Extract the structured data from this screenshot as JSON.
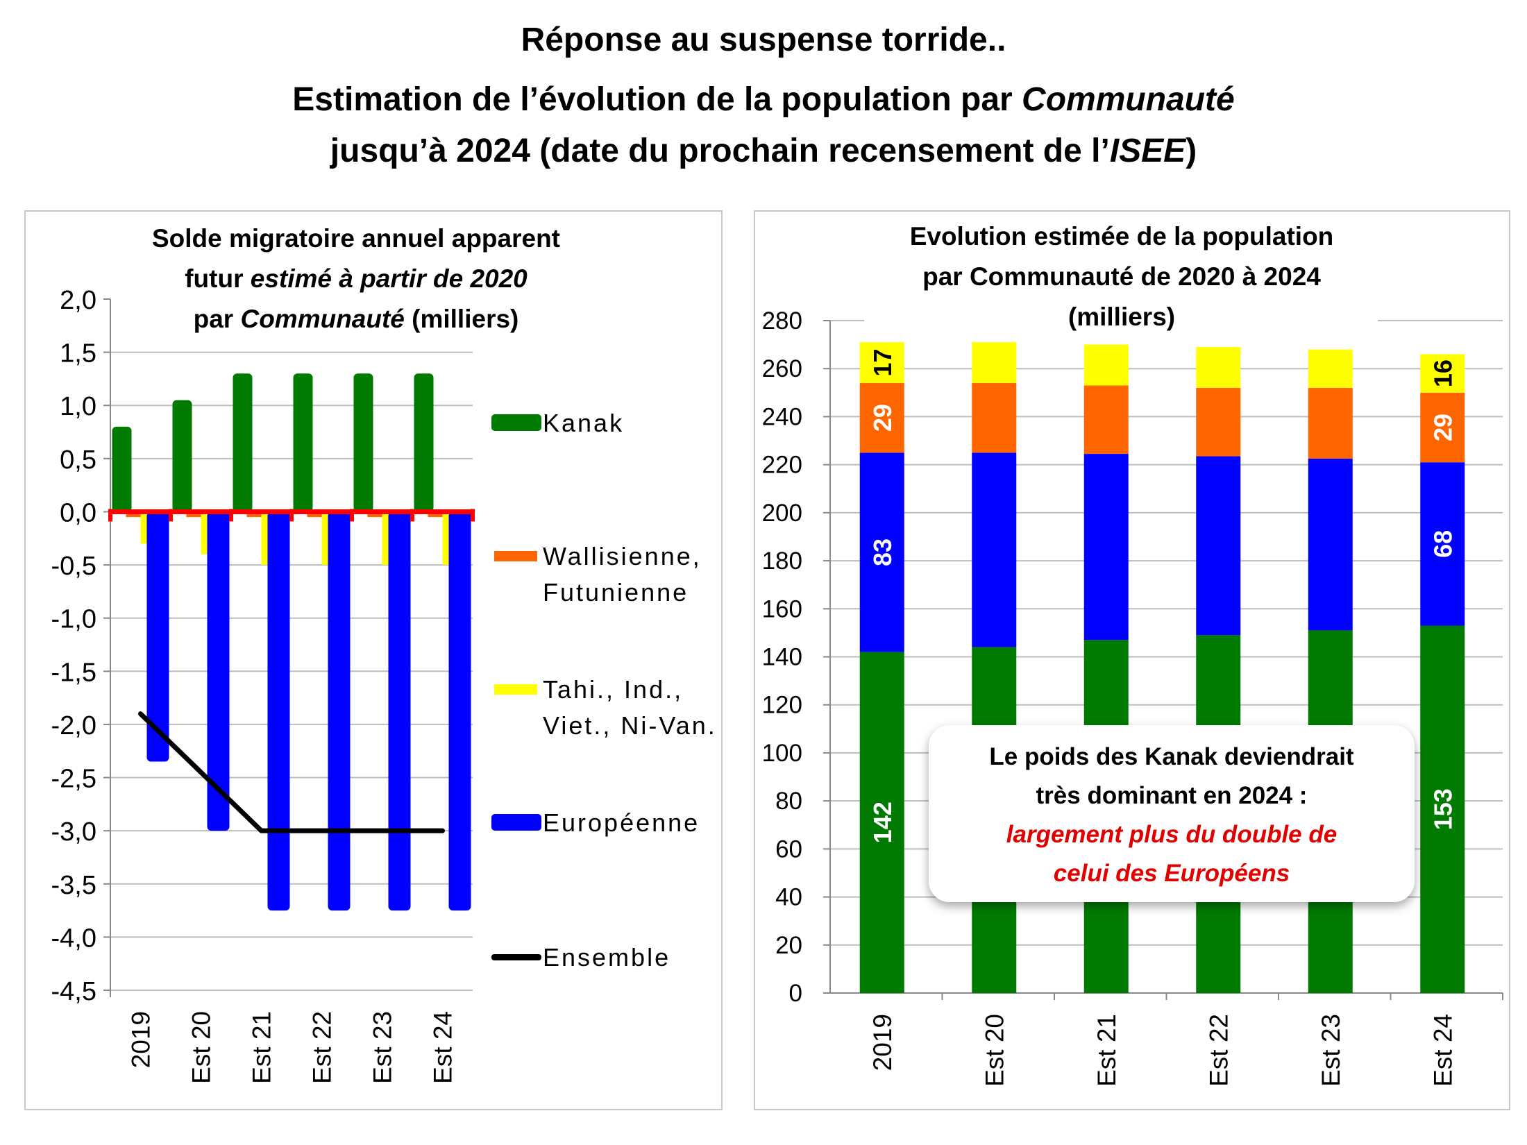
{
  "header": {
    "line1": "Réponse au suspense torride..",
    "line2_prefix": "Estimation de l’évolution de la population par ",
    "line2_italic": "Communauté",
    "line3_prefix": "jusqu’à 2024 (date du prochain recensement de l’",
    "line3_italic": "ISEE",
    "line3_suffix": ")"
  },
  "callout": {
    "line1": "Le poids des Kanak deviendrait",
    "line2": "très dominant en 2024 :",
    "line3": "largement plus du double de",
    "line4": "celui des Européens"
  },
  "colors": {
    "kanak": "#007a00",
    "wallis": "#ff6600",
    "tahi": "#ffff00",
    "europeenne": "#0000ff",
    "ensemble": "#000000",
    "zero_line": "#ff0000"
  },
  "chart_data": [
    {
      "type": "bar",
      "title": "Solde migratoire annuel apparent futur estimé à partir de 2020 par Communauté (milliers)",
      "title_lines": [
        "Solde migratoire annuel apparent",
        "futur |estimé à partir de 2020|",
        "par |Communauté| (milliers)"
      ],
      "categories": [
        "2019",
        "Est 20",
        "Est 21",
        "Est 22",
        "Est 23",
        "Est 24"
      ],
      "series": [
        {
          "name": "Kanak",
          "kind": "bar",
          "values": [
            0.8,
            1.05,
            1.3,
            1.3,
            1.3,
            1.3
          ]
        },
        {
          "name": "Wallisienne, Futunienne",
          "kind": "bar",
          "values": [
            -0.05,
            -0.05,
            -0.05,
            -0.05,
            -0.05,
            -0.05
          ]
        },
        {
          "name": "Tahi., Ind., Viet., Ni-Van.",
          "kind": "bar",
          "values": [
            -0.3,
            -0.4,
            -0.5,
            -0.5,
            -0.5,
            -0.5
          ]
        },
        {
          "name": "Européenne",
          "kind": "bar",
          "values": [
            -2.35,
            -3.0,
            -3.75,
            -3.75,
            -3.75,
            -3.75
          ]
        },
        {
          "name": "Ensemble",
          "kind": "line",
          "values": [
            -1.9,
            -2.45,
            -3.0,
            -3.0,
            -3.0,
            -3.0
          ]
        }
      ],
      "legend": [
        {
          "label_lines": [
            "Kanak"
          ],
          "kind": "box"
        },
        {
          "label_lines": [
            "Wallisienne,",
            "Futunienne"
          ],
          "kind": "box"
        },
        {
          "label_lines": [
            "Tahi., Ind.,",
            "Viet., Ni-Van."
          ],
          "kind": "box"
        },
        {
          "label_lines": [
            "Européenne"
          ],
          "kind": "box"
        },
        {
          "label_lines": [
            "Ensemble"
          ],
          "kind": "line"
        }
      ],
      "legend_position": "right",
      "ylim": [
        -4.5,
        2.0
      ],
      "yticks": [
        "2,0",
        "1,5",
        "1,0",
        "0,5",
        "0,0",
        "-0,5",
        "-1,0",
        "-1,5",
        "-2,0",
        "-2,5",
        "-3,0",
        "-3,5",
        "-4,0",
        "-4,5"
      ],
      "ytick_values": [
        2.0,
        1.5,
        1.0,
        0.5,
        0.0,
        -0.5,
        -1.0,
        -1.5,
        -2.0,
        -2.5,
        -3.0,
        -3.5,
        -4.0,
        -4.5
      ],
      "grid": true,
      "xlabel": "",
      "ylabel": ""
    },
    {
      "type": "bar",
      "stacked": true,
      "title": "Evolution estimée de la population par Communauté de 2020 à 2024 (milliers)",
      "title_lines": [
        "Evolution estimée de la population",
        "par Communauté de 2020 à 2024",
        "(milliers)"
      ],
      "categories": [
        "2019",
        "Est 20",
        "Est 21",
        "Est 22",
        "Est 23",
        "Est 24"
      ],
      "series": [
        {
          "name": "Kanak",
          "values": [
            142,
            144,
            147,
            149,
            151,
            153
          ],
          "labels": [
            "142",
            "",
            "",
            "",
            "",
            "153"
          ]
        },
        {
          "name": "Européenne",
          "values": [
            83,
            81,
            77.5,
            74.5,
            71.5,
            68
          ],
          "labels": [
            "83",
            "",
            "",
            "",
            "",
            "68"
          ]
        },
        {
          "name": "Wallisienne, Futunienne",
          "values": [
            29,
            29,
            28.5,
            28.5,
            29.5,
            29
          ],
          "labels": [
            "29",
            "",
            "",
            "",
            "",
            "29"
          ]
        },
        {
          "name": "Tahi., Ind., Viet., Ni-Van.",
          "values": [
            17,
            17,
            17,
            17,
            16,
            16
          ],
          "labels": [
            "17",
            "",
            "",
            "",
            "",
            "16"
          ]
        }
      ],
      "ylim": [
        0,
        280
      ],
      "yticks": [
        "280",
        "260",
        "240",
        "220",
        "200",
        "180",
        "160",
        "140",
        "120",
        "100",
        "80",
        "60",
        "40",
        "20",
        "0"
      ],
      "ytick_values": [
        280,
        260,
        240,
        220,
        200,
        180,
        160,
        140,
        120,
        100,
        80,
        60,
        40,
        20,
        0
      ],
      "grid": true,
      "xlabel": "",
      "ylabel": ""
    }
  ]
}
